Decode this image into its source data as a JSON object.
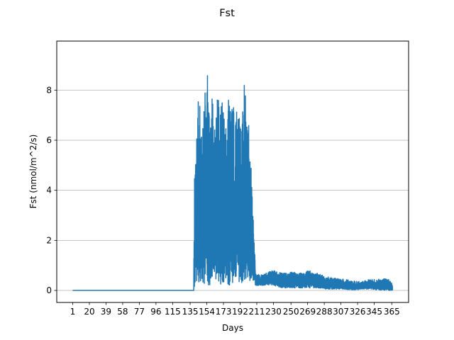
{
  "chart_data": {
    "type": "line",
    "title": "Fst",
    "xlabel": "Days",
    "ylabel": "Fst (nmol/m^2/s)",
    "xlim": [
      -17.2,
      384.2
    ],
    "ylim": [
      -0.48,
      9.96
    ],
    "x_ticks": [
      1,
      20,
      39,
      58,
      77,
      96,
      115,
      135,
      154,
      173,
      192,
      211,
      230,
      250,
      269,
      288,
      307,
      326,
      345,
      365
    ],
    "y_ticks": [
      0,
      2,
      4,
      6,
      8
    ],
    "grid": "horizontal",
    "color": "#1f77b4",
    "envelope": {
      "x": [
        1,
        130,
        139,
        140,
        142,
        145,
        148,
        150,
        152,
        154,
        157,
        160,
        163,
        166,
        169,
        172,
        175,
        178,
        181,
        184,
        187,
        190,
        193,
        196,
        198,
        200,
        202,
        205,
        210,
        215,
        220,
        230,
        240,
        250,
        260,
        270,
        280,
        290,
        300,
        310,
        320,
        330,
        340,
        350,
        360,
        365
      ],
      "upper": [
        0.0,
        0.0,
        0.0,
        5.3,
        5.9,
        8.2,
        6.6,
        7.3,
        8.4,
        9.5,
        7.3,
        8.2,
        7.0,
        7.8,
        7.3,
        8.0,
        6.3,
        8.1,
        7.2,
        7.4,
        6.9,
        8.3,
        7.2,
        8.5,
        7.8,
        6.8,
        6.7,
        4.7,
        0.7,
        0.6,
        0.7,
        0.8,
        0.7,
        0.75,
        0.7,
        0.8,
        0.7,
        0.55,
        0.5,
        0.45,
        0.4,
        0.35,
        0.45,
        0.45,
        0.5,
        0.3
      ],
      "lower": [
        0.0,
        0.0,
        0.0,
        0.15,
        0.2,
        0.2,
        0.2,
        0.2,
        0.2,
        0.2,
        0.2,
        0.2,
        0.2,
        0.2,
        0.2,
        0.2,
        0.2,
        0.2,
        0.2,
        0.2,
        0.2,
        0.2,
        0.2,
        0.2,
        0.2,
        0.2,
        0.2,
        0.2,
        0.2,
        0.2,
        0.2,
        0.2,
        0.1,
        0.1,
        0.1,
        0.1,
        0.1,
        0.05,
        0.05,
        0.05,
        0.0,
        0.05,
        0.05,
        0.0,
        0.0,
        0.0
      ]
    }
  }
}
